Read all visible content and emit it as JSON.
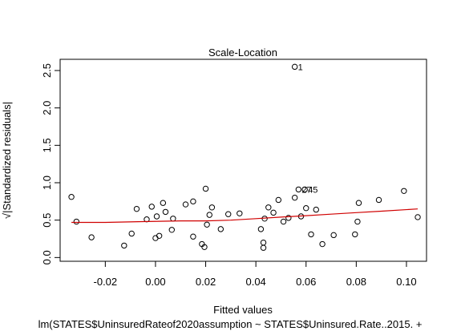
{
  "chart_data": {
    "type": "scatter",
    "title": "Scale-Location",
    "xlabel": "Fitted values",
    "ylabel": "√|Standardized residuals|",
    "subtitle": "lm(STATES$UninsuredRateof2020assumption ~ STATES$Uninsured.Rate..2015. +",
    "xlim": [
      -0.038,
      0.108
    ],
    "ylim": [
      -0.05,
      2.65
    ],
    "x_ticks": [
      -0.02,
      0.0,
      0.02,
      0.04,
      0.06,
      0.08,
      0.1
    ],
    "x_tick_labels": [
      "-0.02",
      "0.00",
      "0.02",
      "0.04",
      "0.06",
      "0.08",
      "0.10"
    ],
    "y_ticks": [
      0.0,
      0.5,
      1.0,
      1.5,
      2.0,
      2.5
    ],
    "y_tick_labels": [
      "0.0",
      "0.5",
      "1.0",
      "1.5",
      "2.0",
      "2.5"
    ],
    "grid": false,
    "colors": {
      "points": "#000000",
      "smooth_line": "#d00000"
    },
    "points": [
      {
        "x": -0.0335,
        "y": 0.81
      },
      {
        "x": -0.0315,
        "y": 0.48
      },
      {
        "x": -0.0255,
        "y": 0.27
      },
      {
        "x": -0.0125,
        "y": 0.16
      },
      {
        "x": -0.0095,
        "y": 0.32
      },
      {
        "x": -0.0075,
        "y": 0.65
      },
      {
        "x": -0.0035,
        "y": 0.51
      },
      {
        "x": -0.0015,
        "y": 0.68
      },
      {
        "x": 0.0,
        "y": 0.26
      },
      {
        "x": 0.0005,
        "y": 0.55
      },
      {
        "x": 0.0015,
        "y": 0.29
      },
      {
        "x": 0.003,
        "y": 0.73
      },
      {
        "x": 0.004,
        "y": 0.61
      },
      {
        "x": 0.0065,
        "y": 0.37
      },
      {
        "x": 0.007,
        "y": 0.52
      },
      {
        "x": 0.012,
        "y": 0.71
      },
      {
        "x": 0.015,
        "y": 0.28
      },
      {
        "x": 0.015,
        "y": 0.75
      },
      {
        "x": 0.0185,
        "y": 0.18
      },
      {
        "x": 0.0195,
        "y": 0.14
      },
      {
        "x": 0.02,
        "y": 0.92
      },
      {
        "x": 0.0205,
        "y": 0.44
      },
      {
        "x": 0.0215,
        "y": 0.57
      },
      {
        "x": 0.0225,
        "y": 0.67
      },
      {
        "x": 0.026,
        "y": 0.38
      },
      {
        "x": 0.029,
        "y": 0.58
      },
      {
        "x": 0.0335,
        "y": 0.59
      },
      {
        "x": 0.042,
        "y": 0.38
      },
      {
        "x": 0.043,
        "y": 0.2
      },
      {
        "x": 0.043,
        "y": 0.13
      },
      {
        "x": 0.0435,
        "y": 0.52
      },
      {
        "x": 0.045,
        "y": 0.67
      },
      {
        "x": 0.047,
        "y": 0.6
      },
      {
        "x": 0.049,
        "y": 0.77
      },
      {
        "x": 0.051,
        "y": 0.48
      },
      {
        "x": 0.053,
        "y": 0.53
      },
      {
        "x": 0.0555,
        "y": 0.8
      },
      {
        "x": 0.0555,
        "y": 2.55
      },
      {
        "x": 0.057,
        "y": 0.91
      },
      {
        "x": 0.058,
        "y": 0.55
      },
      {
        "x": 0.0595,
        "y": 0.91
      },
      {
        "x": 0.06,
        "y": 0.66
      },
      {
        "x": 0.062,
        "y": 0.31
      },
      {
        "x": 0.064,
        "y": 0.64
      },
      {
        "x": 0.0665,
        "y": 0.18
      },
      {
        "x": 0.071,
        "y": 0.3
      },
      {
        "x": 0.0795,
        "y": 0.31
      },
      {
        "x": 0.0805,
        "y": 0.48
      },
      {
        "x": 0.081,
        "y": 0.73
      },
      {
        "x": 0.089,
        "y": 0.77
      },
      {
        "x": 0.099,
        "y": 0.89
      },
      {
        "x": 0.1045,
        "y": 0.54
      }
    ],
    "point_labels": [
      {
        "text": "1",
        "x": 0.0555,
        "y": 2.55
      },
      {
        "text": "27",
        "x": 0.057,
        "y": 0.91
      },
      {
        "text": "45",
        "x": 0.0595,
        "y": 0.91
      }
    ],
    "smooth_line": [
      {
        "x": -0.0335,
        "y": 0.47
      },
      {
        "x": -0.02,
        "y": 0.47
      },
      {
        "x": -0.005,
        "y": 0.48
      },
      {
        "x": 0.01,
        "y": 0.49
      },
      {
        "x": 0.02,
        "y": 0.49
      },
      {
        "x": 0.03,
        "y": 0.5
      },
      {
        "x": 0.04,
        "y": 0.52
      },
      {
        "x": 0.05,
        "y": 0.54
      },
      {
        "x": 0.06,
        "y": 0.56
      },
      {
        "x": 0.07,
        "y": 0.58
      },
      {
        "x": 0.08,
        "y": 0.6
      },
      {
        "x": 0.09,
        "y": 0.62
      },
      {
        "x": 0.1045,
        "y": 0.65
      }
    ]
  }
}
